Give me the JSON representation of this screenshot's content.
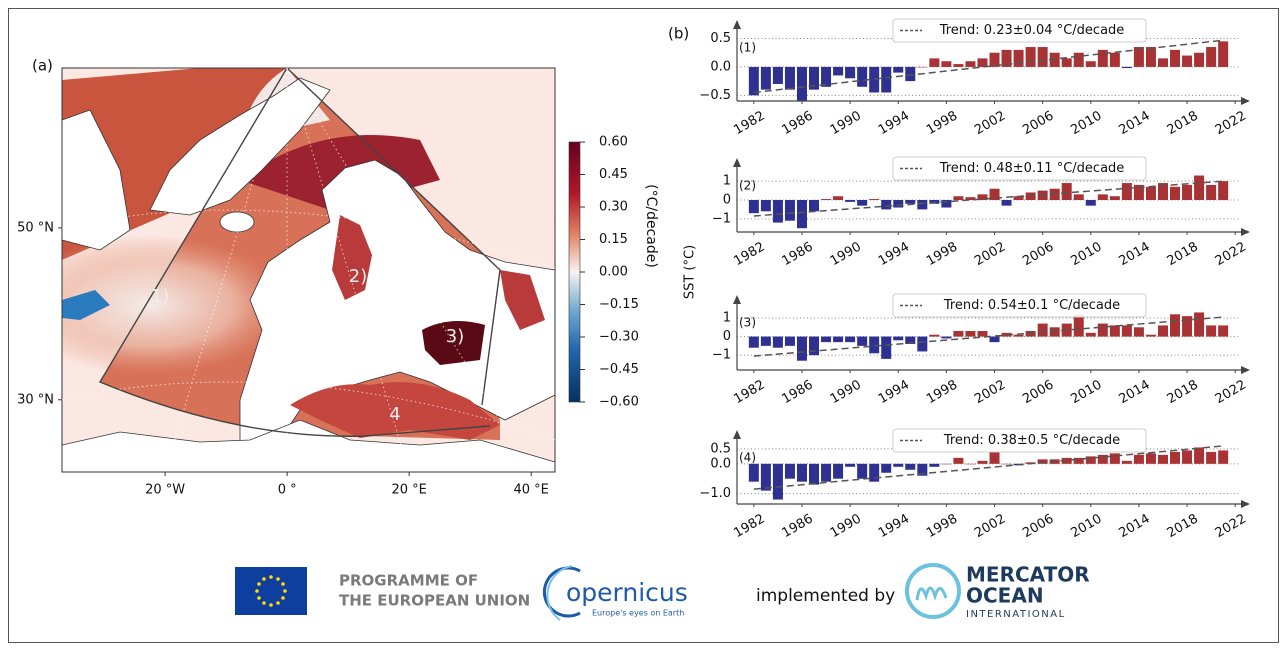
{
  "chart_data": [
    {
      "type": "map",
      "panel_label": "(a)",
      "xlim": [
        -36.9,
        43.9
      ],
      "ylim": [
        21.6,
        68.6
      ],
      "xticks": [
        {
          "value": -20,
          "label": "20 °W"
        },
        {
          "value": 0,
          "label": "0 °"
        },
        {
          "value": 20,
          "label": "20 °E"
        },
        {
          "value": 40,
          "label": "40 °E"
        }
      ],
      "yticks": [
        {
          "value": 50,
          "label": "50 °N"
        },
        {
          "value": 30,
          "label": "30 °N"
        }
      ],
      "region_labels": [
        "1)",
        "2)",
        "3)",
        "4"
      ],
      "colorbar": {
        "label": "(°C/decade)",
        "lim": [
          -0.6,
          0.6
        ],
        "ticks": [
          {
            "value": 0.6,
            "label": "0.60"
          },
          {
            "value": 0.45,
            "label": "0.45"
          },
          {
            "value": 0.3,
            "label": "0.30"
          },
          {
            "value": 0.15,
            "label": "0.15"
          },
          {
            "value": 0,
            "label": "0.00"
          },
          {
            "value": -0.15,
            "label": "−0.15"
          },
          {
            "value": -0.3,
            "label": "−0.30"
          },
          {
            "value": -0.45,
            "label": "−0.45"
          },
          {
            "value": -0.6,
            "label": "−0.60"
          }
        ]
      }
    },
    {
      "type": "bar",
      "panel_label": "(1)",
      "x": [
        1982,
        1983,
        1984,
        1985,
        1986,
        1987,
        1988,
        1989,
        1990,
        1991,
        1992,
        1993,
        1994,
        1995,
        1996,
        1997,
        1998,
        1999,
        2000,
        2001,
        2002,
        2003,
        2004,
        2005,
        2006,
        2007,
        2008,
        2009,
        2010,
        2011,
        2012,
        2013,
        2014,
        2015,
        2016,
        2017,
        2018,
        2019,
        2020,
        2021
      ],
      "values": [
        -0.5,
        -0.4,
        -0.3,
        -0.4,
        -0.6,
        -0.4,
        -0.35,
        -0.15,
        -0.2,
        -0.35,
        -0.45,
        -0.45,
        -0.1,
        -0.25,
        0.0,
        0.15,
        0.1,
        0.05,
        0.1,
        0.15,
        0.25,
        0.3,
        0.3,
        0.35,
        0.35,
        0.25,
        0.15,
        0.25,
        0.1,
        0.3,
        0.25,
        -0.02,
        0.35,
        0.35,
        0.15,
        0.3,
        0.2,
        0.25,
        0.35,
        0.45
      ],
      "xlim": [
        1980.6,
        2022.4
      ],
      "xticks": [
        1982,
        1986,
        1990,
        1994,
        1998,
        2002,
        2006,
        2010,
        2014,
        2018,
        2022
      ],
      "ylim": [
        -0.6,
        0.65
      ],
      "yticks": [
        0.5,
        {
          "value": 0,
          "label": "0.0"
        },
        {
          "value": -0.5,
          "label": "−0.5"
        }
      ],
      "grid": true,
      "positive_color": "#a83234",
      "negative_color": "#2e3192",
      "trend": {
        "label": "Trend: 0.23±0.04 °C/decade",
        "x": [
          1982,
          2021
        ],
        "values": [
          -0.45,
          0.47
        ],
        "color": "#555555"
      }
    },
    {
      "type": "bar",
      "panel_label": "(2)",
      "x": [
        1982,
        1983,
        1984,
        1985,
        1986,
        1987,
        1988,
        1989,
        1990,
        1991,
        1992,
        1993,
        1994,
        1995,
        1996,
        1997,
        1998,
        1999,
        2000,
        2001,
        2002,
        2003,
        2004,
        2005,
        2006,
        2007,
        2008,
        2009,
        2010,
        2011,
        2012,
        2013,
        2014,
        2015,
        2016,
        2017,
        2018,
        2019,
        2020,
        2021
      ],
      "values": [
        -0.7,
        -0.6,
        -1.2,
        -1.1,
        -1.5,
        -0.6,
        0.05,
        0.2,
        -0.1,
        -0.3,
        0.05,
        -0.5,
        -0.4,
        -0.2,
        -0.5,
        -0.2,
        -0.4,
        0.2,
        0.15,
        0.3,
        0.6,
        -0.3,
        0.2,
        0.4,
        0.5,
        0.6,
        0.9,
        0.3,
        -0.3,
        0.3,
        0.2,
        0.9,
        0.8,
        0.7,
        0.9,
        0.7,
        0.8,
        1.3,
        0.8,
        1.0
      ],
      "xlim": [
        1980.6,
        2022.4
      ],
      "xticks": [
        1982,
        1986,
        1990,
        1994,
        1998,
        2002,
        2006,
        2010,
        2014,
        2018,
        2022
      ],
      "ylim": [
        -1.7,
        1.7
      ],
      "yticks": [
        1,
        0,
        {
          "value": -1,
          "label": "−1"
        }
      ],
      "grid": true,
      "positive_color": "#a83234",
      "negative_color": "#2e3192",
      "trend": {
        "label": "Trend: 0.48±0.11 °C/decade",
        "x": [
          1982,
          2021
        ],
        "values": [
          -0.85,
          1.0
        ],
        "color": "#555555"
      }
    },
    {
      "type": "bar",
      "panel_label": "(3)",
      "x": [
        1982,
        1983,
        1984,
        1985,
        1986,
        1987,
        1988,
        1989,
        1990,
        1991,
        1992,
        1993,
        1994,
        1995,
        1996,
        1997,
        1998,
        1999,
        2000,
        2001,
        2002,
        2003,
        2004,
        2005,
        2006,
        2007,
        2008,
        2009,
        2010,
        2011,
        2012,
        2013,
        2014,
        2015,
        2016,
        2017,
        2018,
        2019,
        2020,
        2021
      ],
      "values": [
        -0.6,
        -0.5,
        -0.6,
        -0.5,
        -1.3,
        -1.0,
        -0.3,
        -0.3,
        -0.3,
        -0.5,
        -0.9,
        -1.2,
        -0.2,
        -0.4,
        -0.8,
        0.1,
        -0.1,
        0.3,
        0.3,
        0.3,
        -0.3,
        0.2,
        0.1,
        0.3,
        0.7,
        0.5,
        0.7,
        1.2,
        0.2,
        0.7,
        0.6,
        0.6,
        0.5,
        0.1,
        0.6,
        1.2,
        1.1,
        1.3,
        0.6,
        0.6
      ],
      "xlim": [
        1980.6,
        2022.4
      ],
      "xticks": [
        1982,
        1986,
        1990,
        1994,
        1998,
        2002,
        2006,
        2010,
        2014,
        2018,
        2022
      ],
      "ylim": [
        -1.8,
        1.7
      ],
      "yticks": [
        1,
        0,
        {
          "value": -1,
          "label": "−1"
        }
      ],
      "grid": true,
      "positive_color": "#a83234",
      "negative_color": "#2e3192",
      "trend": {
        "label": "Trend: 0.54±0.1 °C/decade",
        "x": [
          1982,
          2021
        ],
        "values": [
          -1.05,
          1.05
        ],
        "color": "#555555"
      }
    },
    {
      "type": "bar",
      "panel_label": "(4)",
      "x": [
        1982,
        1983,
        1984,
        1985,
        1986,
        1987,
        1988,
        1989,
        1990,
        1991,
        1992,
        1993,
        1994,
        1995,
        1996,
        1997,
        1998,
        1999,
        2000,
        2001,
        2002,
        2003,
        2004,
        2005,
        2006,
        2007,
        2008,
        2009,
        2010,
        2011,
        2012,
        2013,
        2014,
        2015,
        2016,
        2017,
        2018,
        2019,
        2020,
        2021
      ],
      "values": [
        -0.6,
        -0.9,
        -1.2,
        -0.5,
        -0.6,
        -0.7,
        -0.6,
        -0.5,
        -0.1,
        -0.5,
        -0.6,
        -0.3,
        -0.1,
        -0.2,
        -0.4,
        -0.1,
        0.0,
        0.2,
        0.0,
        0.1,
        0.4,
        0.0,
        -0.05,
        0.05,
        0.15,
        0.15,
        0.2,
        0.2,
        0.25,
        0.3,
        0.35,
        0.1,
        0.3,
        0.35,
        0.3,
        0.4,
        0.45,
        0.55,
        0.4,
        0.45
      ],
      "xlim": [
        1980.6,
        2022.4
      ],
      "xticks": [
        1982,
        1986,
        1990,
        1994,
        1998,
        2002,
        2006,
        2010,
        2014,
        2018,
        2022
      ],
      "ylim": [
        -1.35,
        0.8
      ],
      "yticks": [
        0.5,
        {
          "value": 0,
          "label": "0.0"
        },
        {
          "value": -1,
          "label": "−1.0"
        }
      ],
      "grid": true,
      "positive_color": "#a83234",
      "negative_color": "#2e3192",
      "trend": {
        "label": "Trend: 0.38±0.5 °C/decade",
        "x": [
          1982,
          2021
        ],
        "values": [
          -0.85,
          0.6
        ],
        "color": "#555555"
      }
    }
  ],
  "figure": {
    "panel_b_label": "(b)",
    "y_label": "SST (°C)"
  },
  "footer": {
    "eu_line1": "PROGRAMME OF",
    "eu_line2": "THE EUROPEAN UNION",
    "copernicus": "opernicus",
    "copernicus_tagline": "Europe's eyes on Earth",
    "implemented_by": "implemented by",
    "mercator_line1": "MERCATOR",
    "mercator_line2": "OCEAN",
    "mercator_line3": "INTERNATIONAL"
  }
}
